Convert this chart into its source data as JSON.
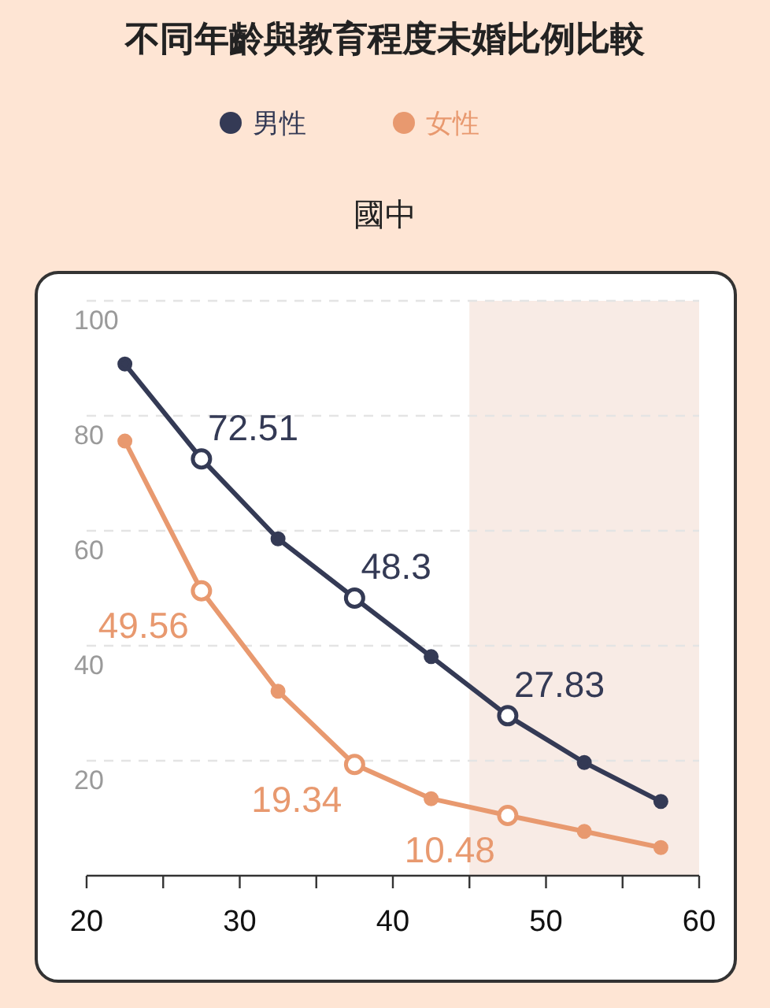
{
  "chart_data": {
    "type": "line",
    "title": "不同年齡與教育程度未婚比例比較",
    "subtitle": "國中",
    "x": [
      22.5,
      27.5,
      32.5,
      37.5,
      42.5,
      47.5,
      52.5,
      57.5
    ],
    "series": [
      {
        "name": "男性",
        "color": "#343a55",
        "values": [
          89.0,
          72.51,
          58.6,
          48.3,
          38.1,
          27.83,
          19.7,
          12.9
        ],
        "value_labels": [
          null,
          "72.51",
          null,
          "48.3",
          null,
          "27.83",
          null,
          null
        ]
      },
      {
        "name": "女性",
        "color": "#e8996f",
        "values": [
          75.6,
          49.56,
          32.1,
          19.34,
          13.4,
          10.48,
          7.7,
          4.9
        ],
        "value_labels": [
          null,
          "49.56",
          null,
          "19.34",
          null,
          "10.48",
          null,
          null
        ]
      }
    ],
    "xlim": [
      20,
      60
    ],
    "xticks": [
      20,
      {
        "value": 25,
        "label": null
      },
      30,
      {
        "value": 35,
        "label": null
      },
      40,
      {
        "value": 45,
        "label": null
      },
      50,
      {
        "value": 55,
        "label": null
      },
      60
    ],
    "ylim": [
      0,
      100
    ],
    "yticks": [
      20,
      40,
      60,
      80,
      100
    ],
    "bands": [
      {
        "axis": "x",
        "from": 45,
        "to": 60,
        "color": "#f8ebe5"
      }
    ],
    "grid": "y",
    "legend": "top",
    "marker": "circle",
    "line_style": "solid"
  }
}
